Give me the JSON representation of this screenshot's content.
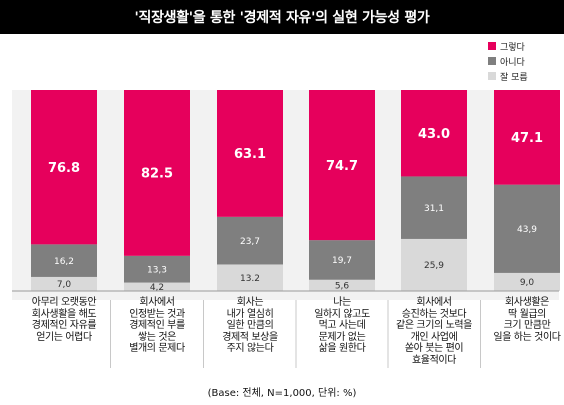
{
  "title": "'직장생활'을 통한 '경제적 자유'의 실현 가능성 평가",
  "footnote": "(Base: 전체, N=1,000, 단위: %)",
  "colors": {
    "yes": "#e6005c",
    "no": "#7f7f7f",
    "unsure": "#d9d9d9"
  },
  "chart_data": {
    "type": "bar",
    "stacked": true,
    "ylim": [
      0,
      100
    ],
    "legend_position": "top-right",
    "categories": [
      "아무리 오랫동안\n회사생활을 해도\n경제적인 자유를\n얻기는 어렵다",
      "회사에서\n인정받는 것과\n경제적인 부를\n쌓는 것은\n별개의 문제다",
      "회사는\n내가 열심히\n일한 만큼의\n경제적 보상을\n주지 않는다",
      "나는\n일하지 않고도\n먹고 사는데\n문제가 없는\n삶을 원한다",
      "회사에서\n승진하는 것보다\n같은 크기의 노력을\n개인 사업에\n쏟아 붓는 편이\n효율적이다",
      "회사생활은\n딱 월급의\n크기 만큼만\n일을 하는 것이다"
    ],
    "series": [
      {
        "name": "그렇다",
        "values": [
          76.8,
          82.5,
          63.1,
          74.7,
          43.0,
          47.1
        ],
        "labels": [
          "76.8",
          "82.5",
          "63.1",
          "74.7",
          "43.0",
          "47.1"
        ]
      },
      {
        "name": "아니다",
        "values": [
          16.2,
          13.3,
          23.7,
          19.7,
          31.1,
          43.9
        ],
        "labels": [
          "16,2",
          "13,3",
          "23,7",
          "19,7",
          "31,1",
          "43,9"
        ]
      },
      {
        "name": "잘 모름",
        "values": [
          7.0,
          4.2,
          13.2,
          5.6,
          25.9,
          9.0
        ],
        "labels": [
          "7,0",
          "4,2",
          "13.2",
          "5,6",
          "25,9",
          "9,0"
        ]
      }
    ]
  }
}
